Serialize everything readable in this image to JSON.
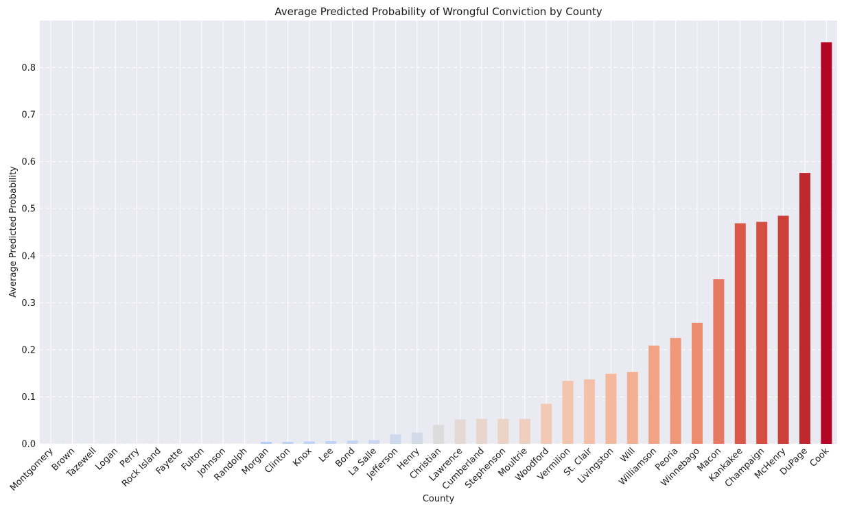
{
  "chart_data": {
    "type": "bar",
    "title": "Average Predicted Probability of Wrongful Conviction by County",
    "xlabel": "County",
    "ylabel": "Average Predicted Probability",
    "ylim": [
      0,
      0.9
    ],
    "yticks": [
      "0.0",
      "0.1",
      "0.2",
      "0.3",
      "0.4",
      "0.5",
      "0.6",
      "0.7",
      "0.8"
    ],
    "grid": true,
    "legend": "none",
    "categories": [
      "Montgomery",
      "Brown",
      "Tazewell",
      "Logan",
      "Perry",
      "Rock Island",
      "Fayette",
      "Fulton",
      "Johnson",
      "Randolph",
      "Morgan",
      "Clinton",
      "Knox",
      "Lee",
      "Bond",
      "La Salle",
      "Jefferson",
      "Henry",
      "Christian",
      "Lawrence",
      "Cumberland",
      "Stephenson",
      "Moultrie",
      "Woodford",
      "Vermilion",
      "St. Clair",
      "Livingston",
      "Will",
      "Williamson",
      "Peoria",
      "Winnebago",
      "Macon",
      "Kankakee",
      "Champaign",
      "McHenry",
      "DuPage",
      "Cook"
    ],
    "values": [
      0.0,
      0.0,
      0.0,
      0.0,
      0.0,
      0.0,
      0.0,
      0.0,
      0.0,
      0.0,
      0.004,
      0.004,
      0.005,
      0.006,
      0.007,
      0.008,
      0.02,
      0.024,
      0.04,
      0.052,
      0.053,
      0.053,
      0.053,
      0.085,
      0.134,
      0.137,
      0.149,
      0.153,
      0.209,
      0.225,
      0.257,
      0.35,
      0.469,
      0.472,
      0.485,
      0.576,
      0.854
    ],
    "colors": [
      "#3b4cc0",
      "#4961d2",
      "#5977e3",
      "#6a8bef",
      "#7b9ff9",
      "#8db0fe",
      "#9ebeff",
      "#aac7fd",
      "#b7cff9",
      "#c4d5f3",
      "#b1cbfc",
      "#b7cff9",
      "#bcd2f7",
      "#c0d4f5",
      "#c5d6f2",
      "#c9d7f0",
      "#cdd9ec",
      "#d2dbe8",
      "#dddcdc",
      "#e4d9d2",
      "#e8d5cc",
      "#ecd3c5",
      "#efcfbf",
      "#f2c9b4",
      "#f4c5ad",
      "#f5c0a7",
      "#f5b89d",
      "#f4af92",
      "#f2a385",
      "#f0977a",
      "#ec8b6e",
      "#e47a62",
      "#d95847",
      "#d44e41",
      "#cc403a",
      "#c0282f",
      "#b40426"
    ]
  }
}
